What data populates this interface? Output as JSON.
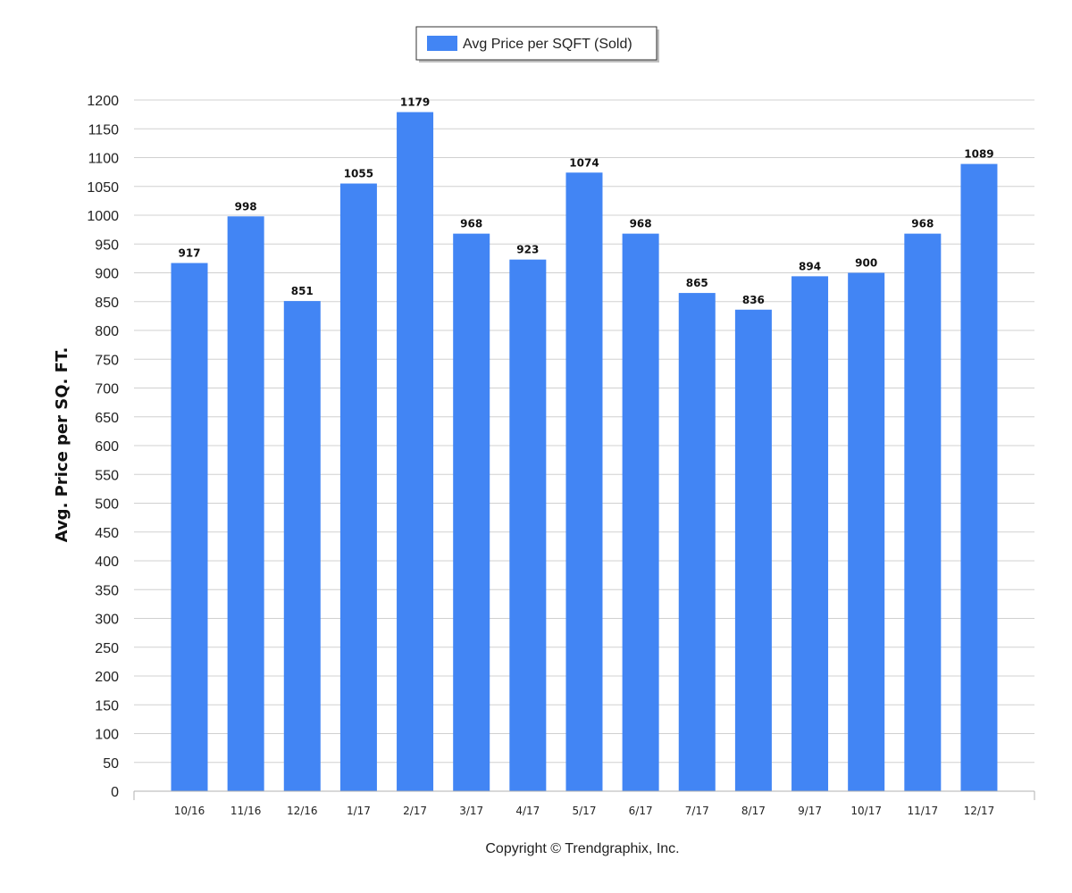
{
  "legend": {
    "label": "Avg Price per SQFT (Sold)"
  },
  "footer": {
    "copyright": "Copyright © Trendgraphix, Inc."
  },
  "chart_data": {
    "type": "bar",
    "categories": [
      "10/16",
      "11/16",
      "12/16",
      "1/17",
      "2/17",
      "3/17",
      "4/17",
      "5/17",
      "6/17",
      "7/17",
      "8/17",
      "9/17",
      "10/17",
      "11/17",
      "12/17"
    ],
    "series": [
      {
        "name": "Avg Price per SQFT (Sold)",
        "values": [
          917,
          998,
          851,
          1055,
          1179,
          968,
          923,
          1074,
          968,
          865,
          836,
          894,
          900,
          968,
          1089
        ],
        "color": "#4285f4"
      }
    ],
    "xlabel": "",
    "ylabel": "Avg. Price per SQ. FT.",
    "ylim": [
      0,
      1200
    ],
    "ytick_step": 50,
    "grid": true,
    "legend_position": "top-center",
    "data_labels": true
  }
}
